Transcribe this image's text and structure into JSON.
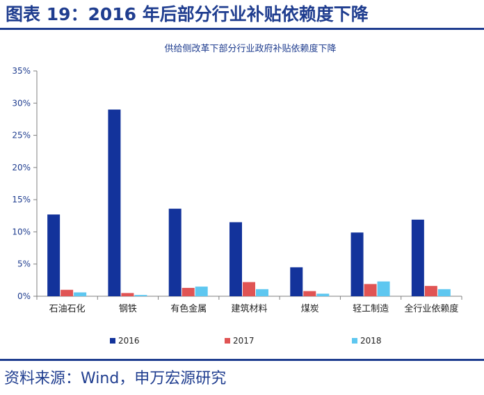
{
  "figure": {
    "title": "图表 19：2016 年后部分行业补贴依赖度下降",
    "source": "资料来源：Wind，申万宏源研究"
  },
  "colors": {
    "header": "#1f3d8f",
    "series": [
      "#13339b",
      "#e05454",
      "#5ec7f0"
    ]
  },
  "chart_data": {
    "type": "bar",
    "title": "供给侧改革下部分行业政府补贴依赖度下降",
    "categories": [
      "石油石化",
      "钢铁",
      "有色金属",
      "建筑材料",
      "煤炭",
      "轻工制造",
      "全行业依赖度"
    ],
    "series": [
      {
        "name": "2016",
        "values": [
          12.7,
          29.0,
          13.6,
          11.5,
          4.5,
          9.9,
          11.9
        ]
      },
      {
        "name": "2017",
        "values": [
          1.0,
          0.5,
          1.3,
          2.2,
          0.8,
          1.9,
          1.6
        ]
      },
      {
        "name": "2018",
        "values": [
          0.6,
          0.2,
          1.5,
          1.1,
          0.4,
          2.3,
          1.1
        ]
      }
    ],
    "ylim": [
      0,
      35
    ],
    "yticks": [
      "0%",
      "5%",
      "10%",
      "15%",
      "20%",
      "25%",
      "30%",
      "35%"
    ],
    "ytick_values": [
      0,
      5,
      10,
      15,
      20,
      25,
      30,
      35
    ],
    "xlabel": "",
    "ylabel": "",
    "legend_position": "bottom",
    "grid": false
  }
}
